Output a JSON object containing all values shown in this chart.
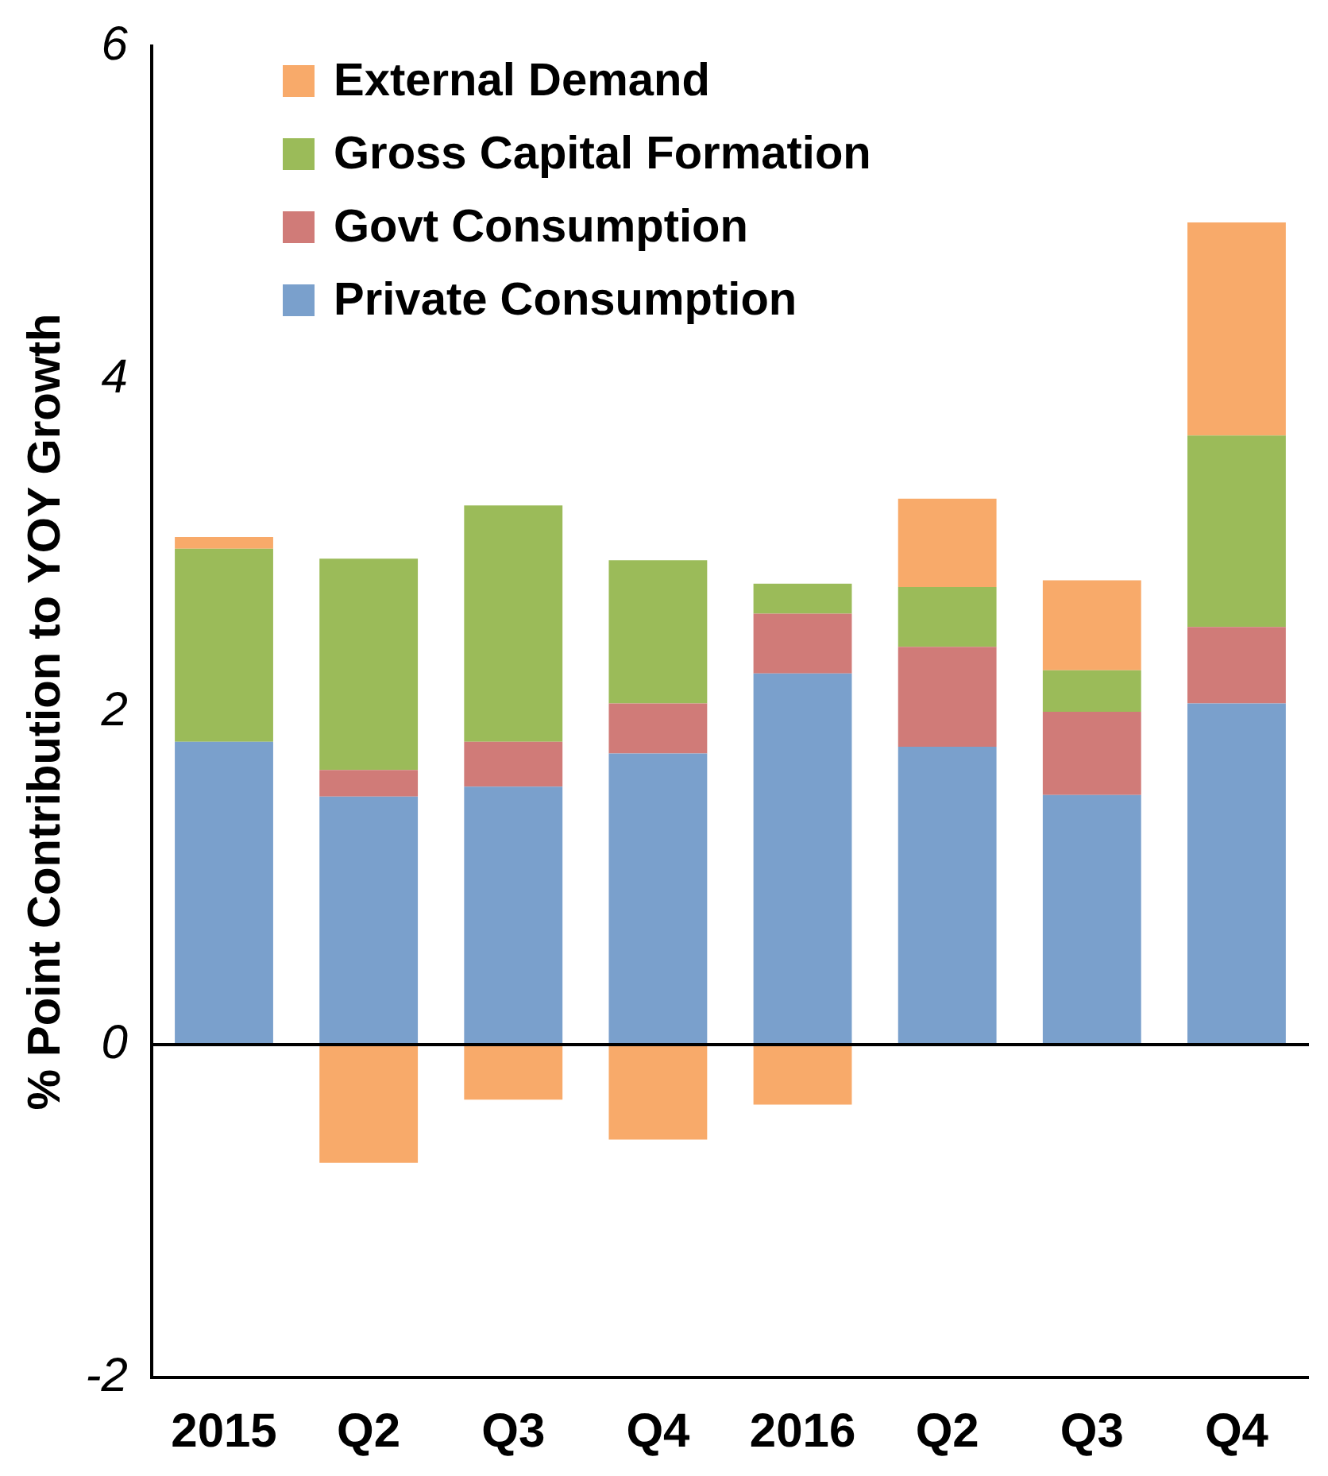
{
  "chart_data": {
    "type": "bar",
    "stacked": true,
    "ylabel": "% Point Contribution to YOY Growth",
    "categories": [
      "2015",
      "Q2",
      "Q3",
      "Q4",
      "2016",
      "Q2",
      "Q3",
      "Q4"
    ],
    "series": [
      {
        "name": "Private Consumption",
        "color": "#7aa0cc",
        "values": [
          1.82,
          1.49,
          1.55,
          1.75,
          2.23,
          1.79,
          1.5,
          2.05
        ]
      },
      {
        "name": "Govt Consumption",
        "color": "#d07b78",
        "values": [
          0,
          0.16,
          0.27,
          0.3,
          0.36,
          0.6,
          0.5,
          0.46
        ]
      },
      {
        "name": "Gross Capital Formation",
        "color": "#9bbb59",
        "values": [
          1.16,
          1.27,
          1.42,
          0.86,
          0.18,
          0.36,
          0.25,
          1.15
        ]
      },
      {
        "name": "External Demand",
        "color": "#f8aa6a",
        "values": [
          0.07,
          -0.71,
          -0.33,
          -0.57,
          -0.36,
          0.53,
          0.54,
          1.28
        ]
      }
    ],
    "ylim": [
      -2,
      6
    ],
    "yticks": [
      -2,
      0,
      2,
      4,
      6
    ],
    "grid": false,
    "legend": "top left",
    "ref_lines": [
      {
        "axis": "y",
        "value": 0,
        "color": "#000000"
      }
    ]
  }
}
